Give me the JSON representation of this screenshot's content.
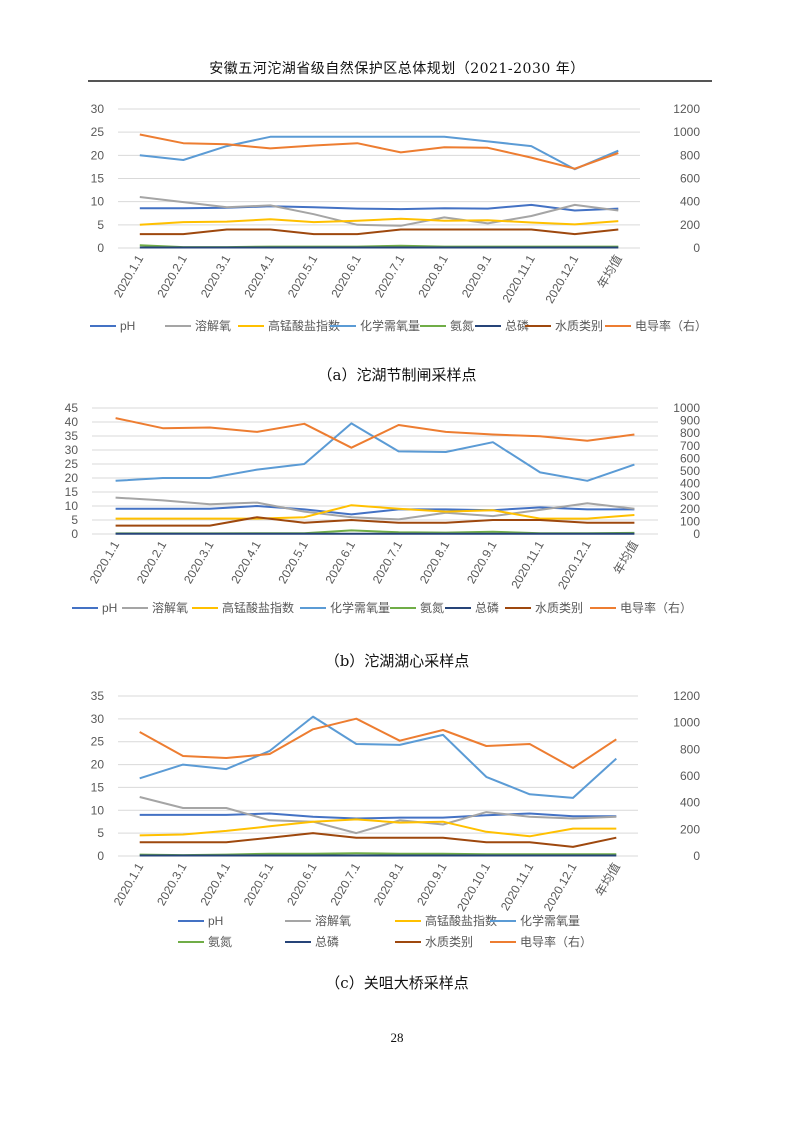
{
  "header": {
    "title": "安徽五河沱湖省级自然保护区总体规划（2021-2030 年）"
  },
  "footer": {
    "page_number": "28"
  },
  "colors": {
    "pH": "#4472C4",
    "dissolved_oxygen": "#A5A5A5",
    "permanganate": "#FFC000",
    "cod": "#5B9BD5",
    "ammonia": "#70AD47",
    "tp": "#264478",
    "water_class": "#9E480E",
    "conductivity": "#ED7D31"
  },
  "figures": [
    {
      "caption": "（a）沱湖节制闸采样点"
    },
    {
      "caption": "（b）沱湖湖心采样点"
    },
    {
      "caption": "（c）关咀大桥采样点"
    }
  ],
  "chart_data": [
    {
      "type": "line",
      "categories": [
        "2020.1.1",
        "2020.2.1",
        "2020.3.1",
        "2020.4.1",
        "2020.5.1",
        "2020.6.1",
        "2020.7.1",
        "2020.8.1",
        "2020.9.1",
        "2020.11.1",
        "2020.12.1",
        "年均值"
      ],
      "y_left": {
        "range": [
          0,
          30
        ],
        "ticks": [
          "0",
          "5",
          "10",
          "15",
          "20",
          "25",
          "30"
        ]
      },
      "y_right": {
        "range": [
          0,
          1200
        ],
        "ticks": [
          "0",
          "200",
          "400",
          "600",
          "800",
          "1000",
          "1200"
        ]
      },
      "legend_position": "bottom",
      "series": [
        {
          "name": "pH",
          "color_key": "pH",
          "axis": "left",
          "values": [
            8.6,
            8.6,
            8.7,
            9.0,
            8.8,
            8.5,
            8.4,
            8.6,
            8.5,
            9.3,
            8.1,
            8.5
          ]
        },
        {
          "name": "溶解氧",
          "color_key": "dissolved_oxygen",
          "axis": "left",
          "values": [
            11.0,
            9.9,
            8.8,
            9.2,
            7.3,
            5.0,
            4.8,
            6.6,
            5.3,
            6.9,
            9.3,
            8.1
          ]
        },
        {
          "name": "高锰酸盐指数",
          "color_key": "permanganate",
          "axis": "left",
          "values": [
            5.0,
            5.6,
            5.7,
            6.2,
            5.6,
            5.9,
            6.3,
            5.9,
            6.0,
            5.5,
            5.1,
            5.8
          ]
        },
        {
          "name": "化学需氧量",
          "color_key": "cod",
          "axis": "left",
          "values": [
            20,
            19,
            22,
            24,
            24,
            24,
            24,
            24,
            23,
            22,
            17,
            21
          ]
        },
        {
          "name": "氨氮",
          "color_key": "ammonia",
          "axis": "left",
          "values": [
            0.6,
            0.2,
            0.2,
            0.3,
            0.3,
            0.3,
            0.5,
            0.3,
            0.3,
            0.3,
            0.3,
            0.3
          ]
        },
        {
          "name": "总磷",
          "color_key": "tp",
          "axis": "left",
          "values": [
            0.1,
            0.1,
            0.1,
            0.1,
            0.1,
            0.1,
            0.1,
            0.1,
            0.1,
            0.1,
            0.1,
            0.1
          ]
        },
        {
          "name": "水质类别",
          "color_key": "water_class",
          "axis": "left",
          "values": [
            3,
            3,
            4,
            4,
            3,
            3,
            4,
            4,
            4,
            4,
            3,
            4
          ]
        },
        {
          "name": "电导率（右）",
          "color_key": "conductivity",
          "axis": "right",
          "values": [
            980,
            905,
            895,
            860,
            885,
            905,
            825,
            870,
            865,
            780,
            685,
            820
          ]
        }
      ]
    },
    {
      "type": "line",
      "categories": [
        "2020.1.1",
        "2020.2.1",
        "2020.3.1",
        "2020.4.1",
        "2020.5.1",
        "2020.6.1",
        "2020.7.1",
        "2020.8.1",
        "2020.9.1",
        "2020.11.1",
        "2020.12.1",
        "年均值"
      ],
      "y_left": {
        "range": [
          0,
          45
        ],
        "ticks": [
          "0",
          "5",
          "10",
          "15",
          "20",
          "25",
          "30",
          "35",
          "40",
          "45"
        ]
      },
      "y_right": {
        "range": [
          0,
          1000
        ],
        "ticks": [
          "0",
          "100",
          "200",
          "300",
          "400",
          "500",
          "600",
          "700",
          "800",
          "900",
          "1000"
        ]
      },
      "legend_position": "bottom",
      "series": [
        {
          "name": "pH",
          "color_key": "pH",
          "axis": "left",
          "values": [
            9.0,
            9.0,
            9.0,
            10.0,
            8.8,
            7.0,
            8.8,
            8.8,
            8.5,
            9.5,
            8.8,
            8.8
          ]
        },
        {
          "name": "溶解氧",
          "color_key": "dissolved_oxygen",
          "axis": "left",
          "values": [
            13.0,
            12.0,
            10.6,
            11.2,
            8.0,
            6.0,
            5.2,
            7.6,
            6.4,
            8.6,
            11.0,
            9.0
          ]
        },
        {
          "name": "高锰酸盐指数",
          "color_key": "permanganate",
          "axis": "left",
          "values": [
            5.5,
            5.5,
            5.5,
            5.5,
            6.0,
            10.3,
            9.0,
            8.0,
            8.5,
            5.5,
            5.5,
            6.8
          ]
        },
        {
          "name": "化学需氧量",
          "color_key": "cod",
          "axis": "left",
          "values": [
            19,
            20,
            20,
            23,
            25,
            39.5,
            29.5,
            29.3,
            32.8,
            22,
            19,
            24.8
          ]
        },
        {
          "name": "氨氮",
          "color_key": "ammonia",
          "axis": "left",
          "values": [
            0.2,
            0.2,
            0.2,
            0.3,
            0.3,
            1.3,
            0.6,
            0.5,
            0.8,
            0.3,
            0.3,
            0.4
          ]
        },
        {
          "name": "总磷",
          "color_key": "tp",
          "axis": "left",
          "values": [
            0.1,
            0.1,
            0.1,
            0.1,
            0.1,
            0.1,
            0.1,
            0.1,
            0.1,
            0.1,
            0.1,
            0.1
          ]
        },
        {
          "name": "水质类别",
          "color_key": "water_class",
          "axis": "left",
          "values": [
            3,
            3,
            3,
            6,
            4,
            5,
            4,
            4,
            5,
            5,
            4,
            4
          ]
        },
        {
          "name": "电导率（右）",
          "color_key": "conductivity",
          "axis": "right",
          "values": [
            920,
            840,
            845,
            810,
            875,
            685,
            865,
            810,
            790,
            775,
            740,
            790
          ]
        }
      ]
    },
    {
      "type": "line",
      "categories": [
        "2020.1.1",
        "2020.3.1",
        "2020.4.1",
        "2020.5.1",
        "2020.6.1",
        "2020.7.1",
        "2020.8.1",
        "2020.9.1",
        "2020.10.1",
        "2020.11.1",
        "2020.12.1",
        "年均值"
      ],
      "y_left": {
        "range": [
          0,
          35
        ],
        "ticks": [
          "0",
          "5",
          "10",
          "15",
          "20",
          "25",
          "30",
          "35"
        ]
      },
      "y_right": {
        "range": [
          0,
          1200
        ],
        "ticks": [
          "0",
          "200",
          "400",
          "600",
          "800",
          "1000",
          "1200"
        ]
      },
      "legend_position": "bottom",
      "series": [
        {
          "name": "pH",
          "color_key": "pH",
          "axis": "left",
          "values": [
            9.0,
            9.0,
            9.0,
            9.3,
            8.6,
            8.2,
            8.4,
            8.4,
            8.9,
            9.3,
            8.7,
            8.7
          ]
        },
        {
          "name": "溶解氧",
          "color_key": "dissolved_oxygen",
          "axis": "left",
          "values": [
            12.9,
            10.5,
            10.5,
            7.8,
            7.5,
            5.0,
            7.8,
            6.9,
            9.6,
            8.6,
            8.2,
            8.6
          ]
        },
        {
          "name": "高锰酸盐指数",
          "color_key": "permanganate",
          "axis": "left",
          "values": [
            4.5,
            4.7,
            5.5,
            6.5,
            7.5,
            8.0,
            7.3,
            7.5,
            5.3,
            4.3,
            6.0,
            6.0
          ]
        },
        {
          "name": "化学需氧量",
          "color_key": "cod",
          "axis": "left",
          "values": [
            17,
            20,
            19,
            23,
            30.5,
            24.5,
            24.3,
            26.5,
            17.3,
            13.5,
            12.7,
            21.3
          ]
        },
        {
          "name": "氨氮",
          "color_key": "ammonia",
          "axis": "left",
          "values": [
            0.3,
            0.2,
            0.3,
            0.5,
            0.5,
            0.6,
            0.5,
            0.5,
            0.4,
            0.4,
            0.4,
            0.4
          ]
        },
        {
          "name": "总磷",
          "color_key": "tp",
          "axis": "left",
          "values": [
            0.1,
            0.1,
            0.1,
            0.1,
            0.1,
            0.1,
            0.1,
            0.1,
            0.1,
            0.1,
            0.1,
            0.1
          ]
        },
        {
          "name": "水质类别",
          "color_key": "water_class",
          "axis": "left",
          "values": [
            3,
            3,
            3,
            4,
            5,
            4,
            4,
            4,
            3,
            3,
            2,
            4
          ]
        },
        {
          "name": "电导率（右）",
          "color_key": "conductivity",
          "axis": "right",
          "values": [
            930,
            750,
            735,
            765,
            950,
            1030,
            865,
            945,
            825,
            840,
            660,
            875
          ]
        }
      ]
    }
  ]
}
